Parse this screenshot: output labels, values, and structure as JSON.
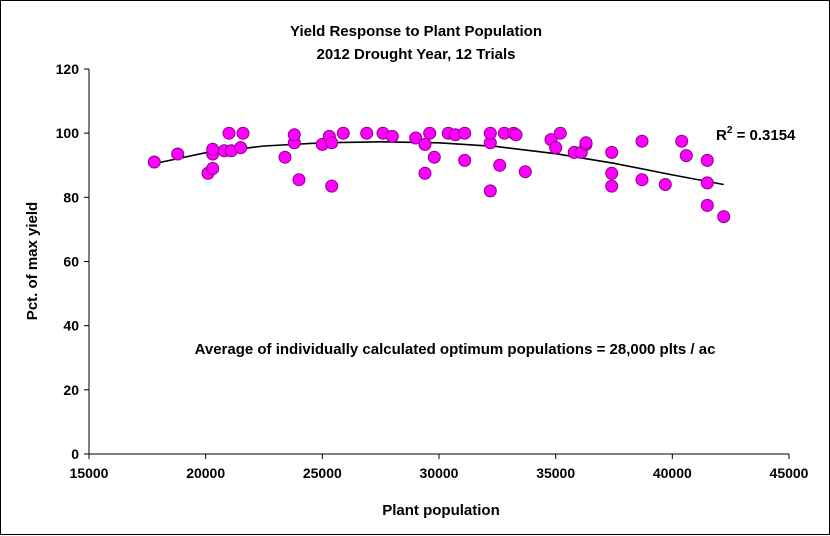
{
  "chart_data": {
    "type": "scatter",
    "title": "Yield Response to Plant Population",
    "subtitle": "2012 Drought Year, 12 Trials",
    "xlabel": "Plant population",
    "ylabel": "Pct. of max yield",
    "xlim": [
      15000,
      45000
    ],
    "ylim": [
      0,
      120
    ],
    "xticks": [
      15000,
      20000,
      25000,
      30000,
      35000,
      40000,
      45000
    ],
    "yticks": [
      0,
      20,
      40,
      60,
      80,
      100,
      120
    ],
    "grid": false,
    "marker_color": "#FF00FF",
    "trendline": {
      "type": "polynomial-2",
      "x": [
        17800,
        20000,
        22500,
        25000,
        27500,
        30000,
        32500,
        35000,
        37500,
        40000,
        42200
      ],
      "y": [
        90.5,
        93.9,
        96.0,
        97.0,
        97.3,
        97.0,
        95.8,
        93.6,
        90.6,
        87.0,
        84.0
      ],
      "r2_label": "R",
      "r2_superscript": "2",
      "r2_value": " = 0.3154"
    },
    "annotation": "Average of individually calculated optimum populations = 28,000 plts / ac",
    "points": [
      [
        17800,
        91
      ],
      [
        18800,
        93.5
      ],
      [
        20100,
        87.5
      ],
      [
        20300,
        89
      ],
      [
        20300,
        93.5
      ],
      [
        20300,
        95
      ],
      [
        20800,
        94.5
      ],
      [
        21000,
        100
      ],
      [
        21100,
        94.5
      ],
      [
        21500,
        95.5
      ],
      [
        21600,
        100
      ],
      [
        23400,
        92.5
      ],
      [
        23800,
        97
      ],
      [
        23800,
        99.5
      ],
      [
        24000,
        85.5
      ],
      [
        25000,
        96.5
      ],
      [
        25300,
        99
      ],
      [
        25400,
        83.5
      ],
      [
        25400,
        97
      ],
      [
        25900,
        100
      ],
      [
        26900,
        100
      ],
      [
        27600,
        100
      ],
      [
        28000,
        99
      ],
      [
        29000,
        98.5
      ],
      [
        29400,
        87.5
      ],
      [
        29400,
        96.5
      ],
      [
        29600,
        100
      ],
      [
        29800,
        92.5
      ],
      [
        30400,
        100
      ],
      [
        30700,
        99.5
      ],
      [
        31100,
        91.5
      ],
      [
        31100,
        100
      ],
      [
        32200,
        82
      ],
      [
        32200,
        97
      ],
      [
        32200,
        100
      ],
      [
        32600,
        90
      ],
      [
        32800,
        100
      ],
      [
        33200,
        100
      ],
      [
        33300,
        99.5
      ],
      [
        33700,
        88
      ],
      [
        34800,
        98
      ],
      [
        35000,
        95.5
      ],
      [
        35200,
        100
      ],
      [
        35800,
        94
      ],
      [
        36100,
        94
      ],
      [
        36300,
        96.5
      ],
      [
        36300,
        97
      ],
      [
        37400,
        83.5
      ],
      [
        37400,
        87.5
      ],
      [
        37400,
        94
      ],
      [
        38700,
        85.5
      ],
      [
        38700,
        97.5
      ],
      [
        39700,
        84
      ],
      [
        40400,
        97.5
      ],
      [
        40600,
        93
      ],
      [
        41500,
        77.5
      ],
      [
        41500,
        84.5
      ],
      [
        41500,
        91.5
      ],
      [
        42200,
        74
      ]
    ]
  }
}
